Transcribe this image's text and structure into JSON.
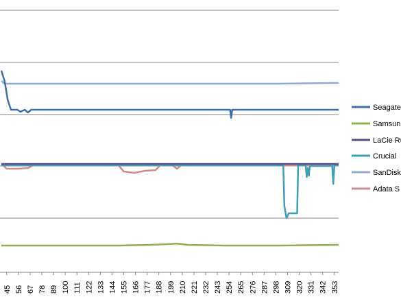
{
  "chart_data": {
    "type": "line",
    "title": "",
    "xlabel": "",
    "ylabel": "",
    "grid": true,
    "legend_position": "right",
    "x_tick_labels": [
      "45",
      "56",
      "67",
      "78",
      "89",
      "100",
      "111",
      "122",
      "133",
      "144",
      "155",
      "166",
      "177",
      "188",
      "199",
      "210",
      "221",
      "232",
      "243",
      "254",
      "265",
      "276",
      "287",
      "298",
      "309",
      "320",
      "331",
      "342",
      "353"
    ],
    "x_range": [
      40,
      357
    ],
    "y_grid_levels": 6,
    "series": [
      {
        "name": "Seagate",
        "color": "#3c6eaa",
        "points": [
          [
            40,
            103
          ],
          [
            43,
            118
          ],
          [
            46,
            146
          ],
          [
            49,
            160
          ],
          [
            55,
            160
          ],
          [
            58,
            163
          ],
          [
            62,
            160
          ],
          [
            65,
            164
          ],
          [
            68,
            160
          ],
          [
            100,
            160
          ],
          [
            150,
            160
          ],
          [
            200,
            160
          ],
          [
            250,
            160
          ],
          [
            255,
            160
          ],
          [
            256,
            172
          ],
          [
            257,
            160
          ],
          [
            300,
            160
          ],
          [
            357,
            160
          ]
        ]
      },
      {
        "name": "Samsun",
        "color": "#8db04c",
        "points": [
          [
            40,
            358
          ],
          [
            100,
            358
          ],
          [
            150,
            358
          ],
          [
            180,
            357
          ],
          [
            195,
            356
          ],
          [
            205,
            355
          ],
          [
            215,
            357
          ],
          [
            250,
            358
          ],
          [
            300,
            358
          ],
          [
            357,
            357
          ]
        ]
      },
      {
        "name": "LaCie Ru",
        "color": "#5b4a8c",
        "points": [
          [
            40,
            239
          ],
          [
            100,
            239
          ],
          [
            200,
            239
          ],
          [
            300,
            239
          ],
          [
            357,
            239
          ]
        ]
      },
      {
        "name": "Crucial",
        "color": "#3e9fb8",
        "points": [
          [
            40,
            241
          ],
          [
            200,
            241
          ],
          [
            305,
            241
          ],
          [
            306,
            300
          ],
          [
            308,
            318
          ],
          [
            310,
            311
          ],
          [
            318,
            311
          ],
          [
            319,
            241
          ],
          [
            326,
            241
          ],
          [
            327,
            258
          ],
          [
            328,
            245
          ],
          [
            329,
            256
          ],
          [
            330,
            242
          ],
          [
            351,
            242
          ],
          [
            352,
            268
          ],
          [
            353,
            241
          ],
          [
            357,
            241
          ]
        ]
      },
      {
        "name": "SanDisk",
        "color": "#8faad3",
        "points": [
          [
            40,
            118
          ],
          [
            43,
            122
          ],
          [
            100,
            122
          ],
          [
            200,
            122
          ],
          [
            300,
            122
          ],
          [
            350,
            121
          ],
          [
            357,
            121
          ]
        ]
      },
      {
        "name": "Adata S",
        "color": "#d28a86",
        "points": [
          [
            40,
            239
          ],
          [
            45,
            246
          ],
          [
            55,
            246
          ],
          [
            65,
            245
          ],
          [
            70,
            241
          ],
          [
            150,
            241
          ],
          [
            155,
            250
          ],
          [
            165,
            252
          ],
          [
            175,
            249
          ],
          [
            185,
            248
          ],
          [
            190,
            240
          ],
          [
            200,
            240
          ],
          [
            205,
            246
          ],
          [
            210,
            240
          ],
          [
            290,
            240
          ],
          [
            295,
            241
          ],
          [
            357,
            241
          ]
        ]
      }
    ]
  }
}
